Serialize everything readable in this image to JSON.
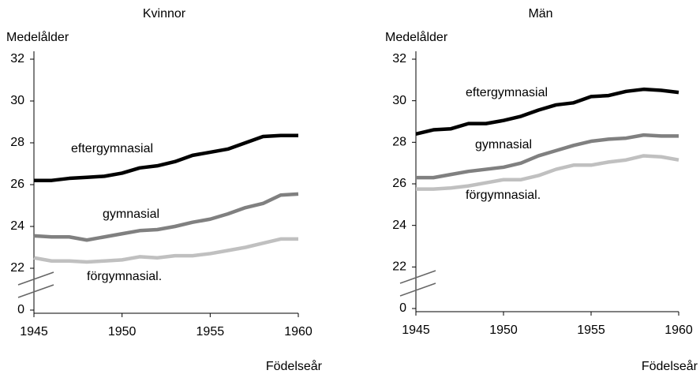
{
  "chart_data": [
    {
      "type": "line",
      "title": "Kvinnor",
      "ylabel": "Medelålder",
      "xlabel": "Födelseår",
      "x": [
        1945,
        1946,
        1947,
        1948,
        1949,
        1950,
        1951,
        1952,
        1953,
        1954,
        1955,
        1956,
        1957,
        1958,
        1959,
        1960
      ],
      "xlim": [
        1945,
        1960
      ],
      "xticks": [
        1945,
        1950,
        1955,
        1960
      ],
      "ylim": [
        20,
        32
      ],
      "yticks": [
        0,
        22,
        24,
        26,
        28,
        30,
        32
      ],
      "axis_break": true,
      "grid": false,
      "series": [
        {
          "name": "eftergymnasial",
          "color": "#000000",
          "values": [
            26.2,
            26.2,
            26.3,
            26.35,
            26.4,
            26.55,
            26.8,
            26.9,
            27.1,
            27.4,
            27.55,
            27.7,
            28.0,
            28.3,
            28.35,
            28.35
          ]
        },
        {
          "name": "gymnasial",
          "color": "#808080",
          "values": [
            23.55,
            23.5,
            23.5,
            23.35,
            23.5,
            23.65,
            23.8,
            23.85,
            24.0,
            24.2,
            24.35,
            24.6,
            24.9,
            25.1,
            25.5,
            25.55
          ]
        },
        {
          "name": "förgymnasial.",
          "color": "#c0c0c0",
          "values": [
            22.5,
            22.35,
            22.35,
            22.3,
            22.35,
            22.4,
            22.55,
            22.5,
            22.6,
            22.6,
            22.7,
            22.85,
            23.0,
            23.2,
            23.4,
            23.4
          ]
        }
      ]
    },
    {
      "type": "line",
      "title": "Män",
      "ylabel": "Medelålder",
      "xlabel": "Födelseår",
      "x": [
        1945,
        1946,
        1947,
        1948,
        1949,
        1950,
        1951,
        1952,
        1953,
        1954,
        1955,
        1956,
        1957,
        1958,
        1959,
        1960
      ],
      "xlim": [
        1945,
        1960
      ],
      "xticks": [
        1945,
        1950,
        1955,
        1960
      ],
      "ylim": [
        20,
        32
      ],
      "yticks": [
        0,
        22,
        24,
        26,
        28,
        30,
        32
      ],
      "axis_break": true,
      "grid": false,
      "series": [
        {
          "name": "eftergymnasial",
          "color": "#000000",
          "values": [
            28.4,
            28.6,
            28.65,
            28.9,
            28.9,
            29.05,
            29.25,
            29.55,
            29.8,
            29.9,
            30.2,
            30.25,
            30.45,
            30.55,
            30.5,
            30.4
          ]
        },
        {
          "name": "gymnasial",
          "color": "#808080",
          "values": [
            26.3,
            26.3,
            26.45,
            26.6,
            26.7,
            26.8,
            27.0,
            27.35,
            27.6,
            27.85,
            28.05,
            28.15,
            28.2,
            28.35,
            28.3,
            28.3
          ]
        },
        {
          "name": "förgymnasial.",
          "color": "#c0c0c0",
          "values": [
            25.75,
            25.75,
            25.8,
            25.9,
            26.05,
            26.2,
            26.2,
            26.4,
            26.7,
            26.9,
            26.9,
            27.05,
            27.15,
            27.35,
            27.3,
            27.15
          ]
        }
      ]
    }
  ]
}
